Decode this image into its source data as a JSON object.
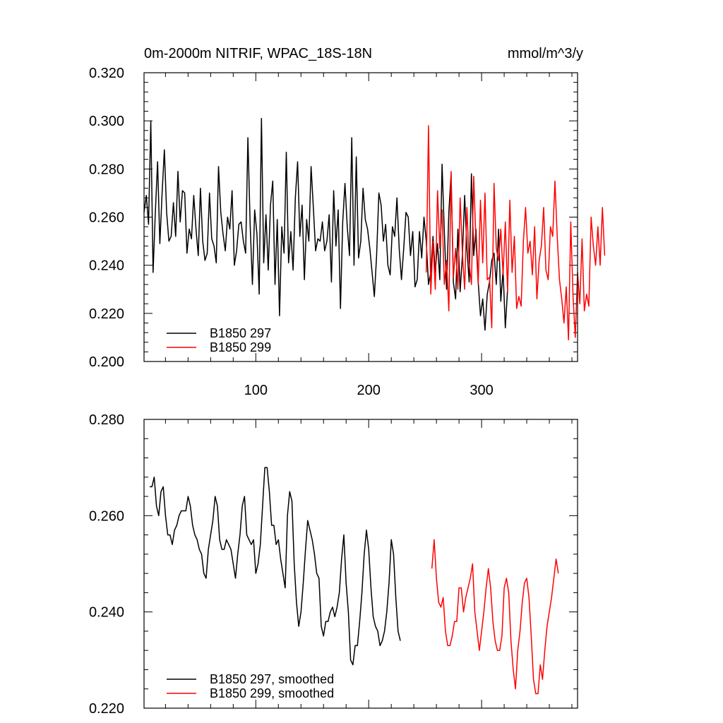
{
  "chart_data": [
    {
      "type": "line",
      "title": "0m-2000m NITRIF, WPAC_18S-18N",
      "units": "mmol/m^3/y",
      "xlim": [
        1,
        385
      ],
      "ylim": [
        0.2,
        0.32
      ],
      "xticks": [
        100,
        200,
        300
      ],
      "xtick_labels": [
        "100",
        "200",
        "300"
      ],
      "yticks": [
        0.2,
        0.22,
        0.24,
        0.26,
        0.28,
        0.3,
        0.32
      ],
      "ytick_labels": [
        "0.200",
        "0.220",
        "0.240",
        "0.260",
        "0.280",
        "0.300",
        "0.320"
      ],
      "legend": "bottom-left",
      "series": [
        {
          "name": "B1850 297",
          "color": "#000000",
          "x_start": 1,
          "x_step": 2,
          "values": [
            0.262,
            0.269,
            0.257,
            0.3,
            0.237,
            0.262,
            0.283,
            0.249,
            0.27,
            0.288,
            0.262,
            0.25,
            0.252,
            0.266,
            0.252,
            0.279,
            0.258,
            0.271,
            0.27,
            0.245,
            0.255,
            0.251,
            0.269,
            0.255,
            0.244,
            0.272,
            0.25,
            0.242,
            0.245,
            0.27,
            0.251,
            0.248,
            0.241,
            0.281,
            0.262,
            0.253,
            0.246,
            0.26,
            0.255,
            0.271,
            0.24,
            0.246,
            0.257,
            0.258,
            0.25,
            0.245,
            0.293,
            0.257,
            0.232,
            0.263,
            0.253,
            0.228,
            0.301,
            0.241,
            0.261,
            0.238,
            0.265,
            0.275,
            0.232,
            0.259,
            0.219,
            0.256,
            0.245,
            0.287,
            0.241,
            0.254,
            0.238,
            0.268,
            0.283,
            0.252,
            0.265,
            0.234,
            0.259,
            0.25,
            0.281,
            0.264,
            0.246,
            0.251,
            0.25,
            0.258,
            0.246,
            0.25,
            0.261,
            0.233,
            0.271,
            0.248,
            0.263,
            0.222,
            0.258,
            0.274,
            0.256,
            0.244,
            0.293,
            0.24,
            0.285,
            0.243,
            0.25,
            0.272,
            0.259,
            0.255,
            0.247,
            0.237,
            0.227,
            0.244,
            0.27,
            0.265,
            0.25,
            0.257,
            0.24,
            0.236,
            0.256,
            0.252,
            0.268,
            0.247,
            0.234,
            0.247,
            0.262,
            0.26,
            0.244,
            0.254,
            0.231,
            0.234,
            0.254,
            0.243,
            0.26,
            0.25,
            0.232,
            0.237,
            0.252,
            0.237,
            0.249,
            0.234,
            0.282,
            0.254,
            0.23,
            0.262,
            0.278,
            0.233,
            0.226,
            0.255,
            0.229,
            0.244,
            0.269,
            0.247,
            0.233,
            0.278,
            0.244,
            0.255,
            0.233,
            0.219,
            0.226,
            0.213,
            0.228,
            0.233,
            0.242,
            0.245,
            0.232,
            0.255,
            0.225,
            0.238,
            0.214,
            0.23
          ]
        },
        {
          "name": "B1850 299",
          "color": "#ff0000",
          "x_start": 251,
          "x_step": 2,
          "values": [
            0.237,
            0.298,
            0.228,
            0.25,
            0.23,
            0.271,
            0.247,
            0.263,
            0.232,
            0.242,
            0.221,
            0.279,
            0.235,
            0.247,
            0.23,
            0.268,
            0.245,
            0.23,
            0.264,
            0.241,
            0.232,
            0.277,
            0.25,
            0.232,
            0.267,
            0.241,
            0.27,
            0.234,
            0.235,
            0.214,
            0.274,
            0.247,
            0.242,
            0.255,
            0.236,
            0.258,
            0.229,
            0.267,
            0.237,
            0.252,
            0.222,
            0.227,
            0.223,
            0.25,
            0.264,
            0.245,
            0.25,
            0.236,
            0.256,
            0.226,
            0.242,
            0.248,
            0.264,
            0.238,
            0.234,
            0.256,
            0.252,
            0.275,
            0.252,
            0.234,
            0.226,
            0.216,
            0.231,
            0.209,
            0.258,
            0.227,
            0.21,
            0.237,
            0.224,
            0.251,
            0.221,
            0.228,
            0.223,
            0.26,
            0.248,
            0.24,
            0.256,
            0.24,
            0.264,
            0.244
          ]
        }
      ]
    },
    {
      "type": "line",
      "xlim": [
        1,
        385
      ],
      "ylim": [
        0.22,
        0.28
      ],
      "xticks": [
        100,
        200,
        300
      ],
      "yticks": [
        0.22,
        0.24,
        0.26,
        0.28
      ],
      "ytick_labels": [
        "0.220",
        "0.240",
        "0.260",
        "0.280"
      ],
      "legend": "bottom-left",
      "series": [
        {
          "name": "B1850 297, smoothed",
          "color": "#000000",
          "x_start": 6,
          "x_step": 2,
          "values": [
            0.266,
            0.266,
            0.268,
            0.262,
            0.26,
            0.265,
            0.266,
            0.26,
            0.256,
            0.256,
            0.254,
            0.257,
            0.258,
            0.26,
            0.261,
            0.261,
            0.261,
            0.264,
            0.262,
            0.258,
            0.256,
            0.255,
            0.253,
            0.252,
            0.248,
            0.247,
            0.253,
            0.256,
            0.259,
            0.264,
            0.262,
            0.255,
            0.253,
            0.253,
            0.255,
            0.254,
            0.253,
            0.25,
            0.247,
            0.252,
            0.256,
            0.262,
            0.264,
            0.256,
            0.255,
            0.254,
            0.255,
            0.248,
            0.25,
            0.254,
            0.262,
            0.27,
            0.27,
            0.265,
            0.258,
            0.258,
            0.254,
            0.255,
            0.251,
            0.248,
            0.245,
            0.26,
            0.265,
            0.263,
            0.25,
            0.242,
            0.237,
            0.24,
            0.246,
            0.253,
            0.259,
            0.257,
            0.255,
            0.252,
            0.248,
            0.247,
            0.237,
            0.235,
            0.238,
            0.238,
            0.24,
            0.241,
            0.239,
            0.241,
            0.244,
            0.251,
            0.256,
            0.246,
            0.24,
            0.23,
            0.229,
            0.233,
            0.233,
            0.238,
            0.244,
            0.252,
            0.257,
            0.253,
            0.245,
            0.239,
            0.237,
            0.236,
            0.233,
            0.234,
            0.236,
            0.24,
            0.246,
            0.255,
            0.252,
            0.243,
            0.236,
            0.234
          ]
        },
        {
          "name": "B1850 299, smoothed",
          "color": "#ff0000",
          "x_start": 256,
          "x_step": 2,
          "values": [
            0.249,
            0.255,
            0.247,
            0.242,
            0.241,
            0.243,
            0.236,
            0.233,
            0.233,
            0.235,
            0.238,
            0.238,
            0.245,
            0.245,
            0.24,
            0.243,
            0.245,
            0.247,
            0.25,
            0.24,
            0.236,
            0.232,
            0.236,
            0.24,
            0.245,
            0.249,
            0.245,
            0.238,
            0.234,
            0.232,
            0.232,
            0.235,
            0.245,
            0.247,
            0.244,
            0.234,
            0.228,
            0.224,
            0.232,
            0.236,
            0.242,
            0.246,
            0.247,
            0.243,
            0.235,
            0.226,
            0.223,
            0.223,
            0.229,
            0.226,
            0.232,
            0.237,
            0.24,
            0.243,
            0.247,
            0.251,
            0.248
          ]
        }
      ]
    }
  ]
}
